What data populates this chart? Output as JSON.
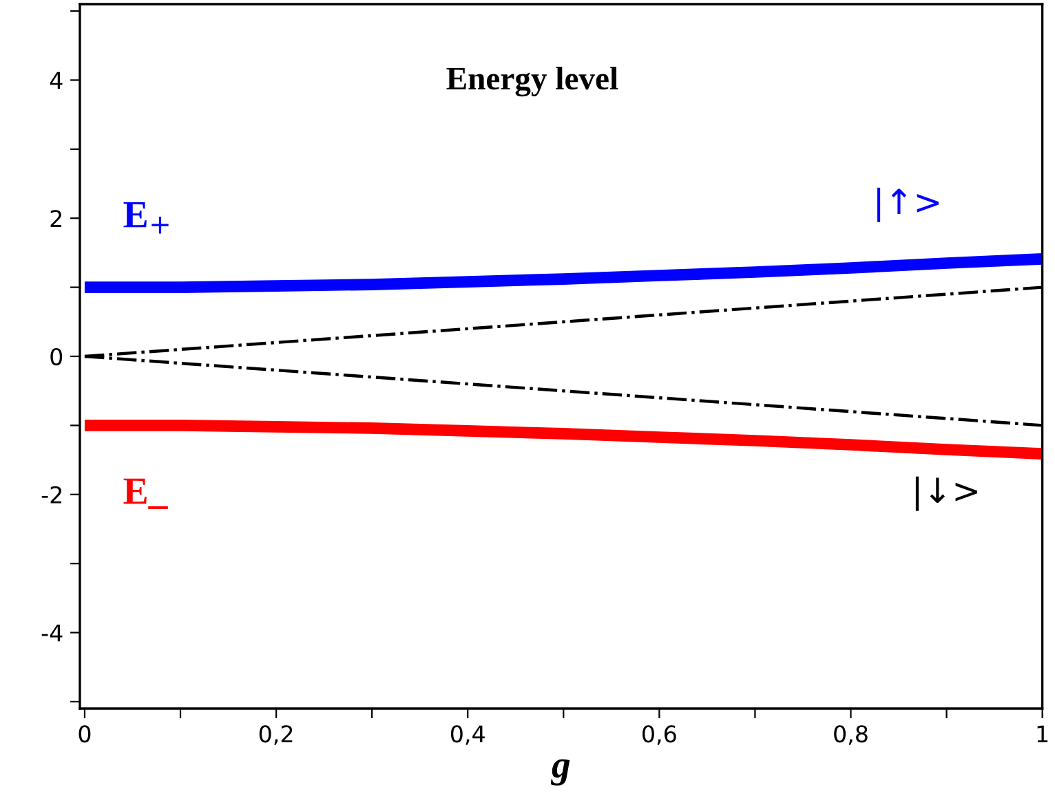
{
  "chart_data": {
    "type": "line",
    "title": "Energy level",
    "xlabel": "g",
    "x": [
      0,
      0.1,
      0.2,
      0.3,
      0.4,
      0.5,
      0.6,
      0.7,
      0.8,
      0.9,
      1.0
    ],
    "series": [
      {
        "name": "E$_{+}$",
        "color": "#0000ff",
        "values": [
          1.0,
          1.0,
          1.02,
          1.04,
          1.08,
          1.12,
          1.17,
          1.22,
          1.28,
          1.35,
          1.41
        ]
      },
      {
        "name": "E_",
        "color": "#ff0000",
        "values": [
          -1.0,
          -1.0,
          -1.02,
          -1.04,
          -1.08,
          -1.12,
          -1.17,
          -1.22,
          -1.28,
          -1.35,
          -1.41
        ]
      },
      {
        "color": "#000000",
        "line_style": "dashdot",
        "values": [
          0,
          0.1,
          0.2,
          0.3,
          0.4,
          0.5,
          0.6,
          0.7,
          0.8,
          0.9,
          1.0
        ]
      },
      {
        "color": "#000000",
        "line_style": "dashdot",
        "values": [
          0,
          -0.1,
          -0.2,
          -0.3,
          -0.4,
          -0.5,
          -0.6,
          -0.7,
          -0.8,
          -0.9,
          -1.0
        ]
      }
    ],
    "annotations": [
      "|↑>",
      "|↓>"
    ],
    "xlim": [
      -0.005,
      1.0
    ],
    "ylim": [
      -5.1,
      5.1
    ],
    "xticks": [
      {
        "value": 0,
        "label": "0"
      },
      {
        "value": 0.1,
        "label": null
      },
      {
        "value": 0.2,
        "label": "0,2"
      },
      {
        "value": 0.3,
        "label": null
      },
      {
        "value": 0.4,
        "label": "0,4"
      },
      {
        "value": 0.5,
        "label": null
      },
      {
        "value": 0.6,
        "label": "0,6"
      },
      {
        "value": 0.7,
        "label": null
      },
      {
        "value": 0.8,
        "label": "0,8"
      },
      {
        "value": 0.9,
        "label": null
      },
      {
        "value": 1.0,
        "label": "1"
      }
    ],
    "yticks": [
      {
        "value": -5,
        "label": null
      },
      {
        "value": -4,
        "label": "-4"
      },
      {
        "value": -3,
        "label": null
      },
      {
        "value": -2,
        "label": "-2"
      },
      {
        "value": -1,
        "label": null
      },
      {
        "value": 0,
        "label": "0"
      },
      {
        "value": 1,
        "label": null
      },
      {
        "value": 2,
        "label": "2"
      },
      {
        "value": 3,
        "label": null
      },
      {
        "value": 4,
        "label": "4"
      },
      {
        "value": 5,
        "label": null
      }
    ],
    "grid": false,
    "legend": false,
    "marker": "none"
  }
}
